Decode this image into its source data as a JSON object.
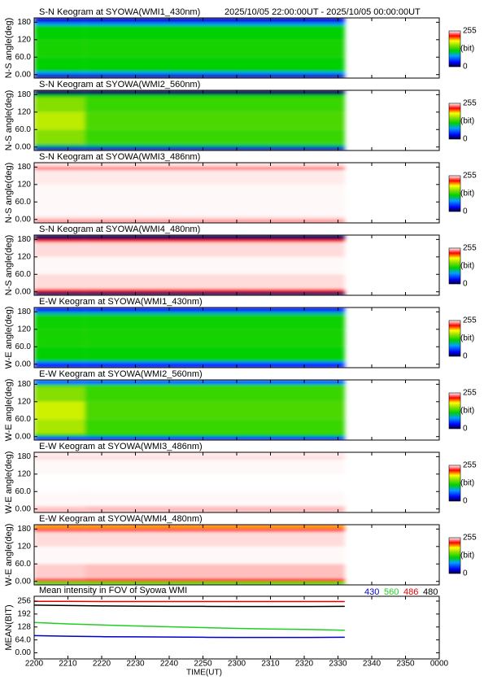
{
  "chart_data": [
    {
      "type": "heatmap",
      "title": "S-N Keogram at SYOWA(WMI1_430nm)",
      "subtitle": "2025/10/05 22:00:00UT - 2025/10/05 00:00:00UT",
      "ylabel": "N-S angle(deg)",
      "ylim": [
        -12,
        195
      ],
      "yticks": [
        {
          "value": 0,
          "label": "0.00"
        },
        {
          "value": 60,
          "label": "60.0"
        },
        120,
        180
      ],
      "x_bins": [
        0,
        15,
        92
      ],
      "y_bins": [
        -12,
        0,
        10,
        60,
        120,
        170,
        180,
        195
      ],
      "values": [
        [
          20,
          70,
          115,
          120,
          115,
          70,
          25
        ],
        [
          20,
          70,
          115,
          120,
          115,
          70,
          25
        ]
      ],
      "clim": [
        0,
        255
      ],
      "cticks": [
        0,
        255
      ],
      "clabel": "(bit)"
    },
    {
      "type": "heatmap",
      "title": "S-N Keogram at SYOWA(WMI2_560nm)",
      "ylabel": "N-S angle(deg)",
      "ylim": [
        -12,
        195
      ],
      "yticks": [
        {
          "value": 0,
          "label": "0.00"
        },
        {
          "value": 60,
          "label": "60.0"
        },
        120,
        180
      ],
      "x_bins": [
        0,
        15,
        92
      ],
      "y_bins": [
        -12,
        0,
        10,
        60,
        120,
        170,
        180,
        195
      ],
      "values": [
        [
          20,
          100,
          150,
          165,
          150,
          120,
          5
        ],
        [
          20,
          100,
          130,
          135,
          130,
          120,
          5
        ]
      ],
      "clim": [
        0,
        255
      ],
      "cticks": [
        0,
        255
      ],
      "clabel": "(bit)"
    },
    {
      "type": "heatmap",
      "title": "S-N Keogram at SYOWA(WMI3_486nm)",
      "ylabel": "N-S angle(deg)",
      "ylim": [
        -12,
        195
      ],
      "yticks": [
        {
          "value": 0,
          "label": "0.00"
        },
        {
          "value": 60,
          "label": "60.0"
        },
        120,
        180
      ],
      "x_bins": [
        0,
        15,
        92
      ],
      "y_bins": [
        -12,
        0,
        10,
        60,
        120,
        170,
        180,
        195
      ],
      "values": [
        [
          240,
          250,
          254,
          254,
          252,
          235,
          250
        ],
        [
          240,
          250,
          254,
          254,
          252,
          235,
          250
        ]
      ],
      "clim": [
        0,
        255
      ],
      "cticks": [
        0,
        255
      ],
      "clabel": "(bit)"
    },
    {
      "type": "heatmap",
      "title": "S-N Keogram at SYOWA(WMI4_480nm)",
      "ylabel": "N-S angle(deg)",
      "ylim": [
        -12,
        195
      ],
      "yticks": [
        {
          "value": 0,
          "label": "0.00"
        },
        {
          "value": 60,
          "label": "60.0"
        },
        120,
        180
      ],
      "x_bins": [
        0,
        15,
        92
      ],
      "y_bins": [
        -12,
        0,
        10,
        60,
        120,
        170,
        180,
        195
      ],
      "values": [
        [
          5,
          225,
          250,
          254,
          250,
          225,
          5
        ],
        [
          5,
          225,
          250,
          254,
          250,
          225,
          5
        ]
      ],
      "clim": [
        0,
        255
      ],
      "cticks": [
        0,
        255
      ],
      "clabel": "(bit)"
    },
    {
      "type": "heatmap",
      "title": "E-W Keogram at SYOWA(WMI1_430nm)",
      "ylabel": "W-E angle(deg)",
      "ylim": [
        -12,
        195
      ],
      "yticks": [
        {
          "value": 0,
          "label": "0.00"
        },
        {
          "value": 60,
          "label": "60.0"
        },
        120,
        180
      ],
      "x_bins": [
        0,
        15,
        92
      ],
      "y_bins": [
        -12,
        0,
        10,
        60,
        120,
        170,
        180,
        195
      ],
      "values": [
        [
          30,
          60,
          115,
          120,
          118,
          90,
          40
        ],
        [
          30,
          60,
          115,
          120,
          118,
          90,
          40
        ]
      ],
      "clim": [
        0,
        255
      ],
      "cticks": [
        0,
        255
      ],
      "clabel": "(bit)"
    },
    {
      "type": "heatmap",
      "title": "E-W Keogram at SYOWA(WMI2_560nm)",
      "ylabel": "W-E angle(deg)",
      "ylim": [
        -12,
        195
      ],
      "yticks": [
        {
          "value": 0,
          "label": "0.00"
        },
        {
          "value": 60,
          "label": "60.0"
        },
        120,
        180
      ],
      "x_bins": [
        0,
        15,
        92
      ],
      "y_bins": [
        -12,
        0,
        10,
        60,
        120,
        170,
        180,
        195
      ],
      "values": [
        [
          40,
          120,
          160,
          170,
          150,
          130,
          60
        ],
        [
          40,
          115,
          130,
          135,
          130,
          125,
          60
        ]
      ],
      "clim": [
        0,
        255
      ],
      "cticks": [
        0,
        255
      ],
      "clabel": "(bit)"
    },
    {
      "type": "heatmap",
      "title": "E-W Keogram at SYOWA(WMI3_486nm)",
      "ylabel": "W-E angle(deg)",
      "ylim": [
        -12,
        195
      ],
      "yticks": [
        {
          "value": 0,
          "label": "0.00"
        },
        {
          "value": 60,
          "label": "60.0"
        },
        120,
        180
      ],
      "x_bins": [
        0,
        15,
        92
      ],
      "y_bins": [
        -12,
        0,
        10,
        60,
        120,
        170,
        180,
        195
      ],
      "values": [
        [
          245,
          248,
          254,
          255,
          254,
          250,
          252
        ],
        [
          245,
          246,
          254,
          255,
          254,
          250,
          252
        ]
      ],
      "clim": [
        0,
        255
      ],
      "cticks": [
        0,
        255
      ],
      "clabel": "(bit)"
    },
    {
      "type": "heatmap",
      "title": "E-W Keogram at SYOWA(WMI4_480nm)",
      "ylabel": "W-E angle(deg)",
      "ylim": [
        -12,
        195
      ],
      "yticks": [
        {
          "value": 0,
          "label": "0.00"
        },
        {
          "value": 60,
          "label": "60.0"
        },
        120,
        180
      ],
      "x_bins": [
        0,
        15,
        92
      ],
      "y_bins": [
        -12,
        0,
        10,
        60,
        120,
        170,
        180,
        195
      ],
      "values": [
        [
          130,
          225,
          248,
          254,
          250,
          230,
          200
        ],
        [
          130,
          220,
          246,
          254,
          250,
          230,
          200
        ]
      ],
      "clim": [
        0,
        255
      ],
      "cticks": [
        0,
        255
      ],
      "clabel": "(bit)"
    },
    {
      "type": "line",
      "title": "Mean intensity in FOV of Syowa WMI",
      "ylabel": "MEAN(BIT)",
      "xlabel": "TIME(UT)",
      "ylim": [
        -30,
        280
      ],
      "yticks": [
        {
          "value": 0,
          "label": "0.00"
        },
        {
          "value": 64,
          "label": "64.0"
        },
        128,
        192,
        256
      ],
      "xlim": [
        0,
        120
      ],
      "xticks": [
        {
          "value": 0,
          "label": "2200"
        },
        {
          "value": 10,
          "label": "2210"
        },
        {
          "value": 20,
          "label": "2220"
        },
        {
          "value": 30,
          "label": "2230"
        },
        {
          "value": 40,
          "label": "2240"
        },
        {
          "value": 50,
          "label": "2250"
        },
        {
          "value": 60,
          "label": "2300"
        },
        {
          "value": 70,
          "label": "2310"
        },
        {
          "value": 80,
          "label": "2320"
        },
        {
          "value": 90,
          "label": "2330"
        },
        {
          "value": 100,
          "label": "2340"
        },
        {
          "value": 110,
          "label": "2350"
        },
        {
          "value": 120,
          "label": "0000"
        }
      ],
      "x": [
        0,
        10,
        20,
        30,
        40,
        50,
        60,
        70,
        80,
        92
      ],
      "series": [
        {
          "name": "430",
          "color": "#0000c8",
          "values": [
            85,
            82,
            80,
            79,
            78,
            77,
            76,
            76,
            76,
            77
          ]
        },
        {
          "name": "560",
          "color": "#20d020",
          "values": [
            150,
            143,
            138,
            133,
            129,
            125,
            121,
            118,
            116,
            112
          ]
        },
        {
          "name": "486",
          "color": "#e00000",
          "values": [
            255,
            255,
            254,
            254,
            254,
            254,
            254,
            254,
            254,
            254
          ]
        },
        {
          "name": "480",
          "color": "#000000",
          "values": [
            236,
            234,
            232,
            231,
            230,
            230,
            229,
            229,
            229,
            230
          ]
        }
      ]
    }
  ]
}
